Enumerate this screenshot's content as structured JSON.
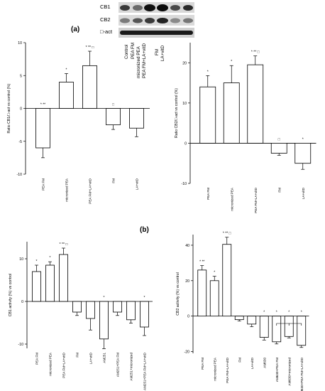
{
  "figure": {
    "panel_a": "(a)",
    "panel_b": "(b)",
    "blot": {
      "labels": [
        "CB1",
        "CB2",
        "□-act"
      ],
      "columns": [
        "Control",
        "PEA FM",
        "micronized PEA",
        "PEA FM+LA+vitD",
        "FM",
        "LA+vitD"
      ]
    }
  },
  "chart_data": [
    {
      "id": "cb1_expr",
      "type": "bar",
      "ylabel": "Ratio CB1/□-act vs control (%)",
      "ylim": [
        -10,
        10
      ],
      "yticks": [
        -10,
        -5,
        0,
        5,
        10
      ],
      "categories": [
        "PEA FM",
        "micronized PEA",
        "PEA FM+LA+vitD",
        "FM",
        "LA+vitD"
      ],
      "values": [
        -6.0,
        4.0,
        6.5,
        -2.5,
        -3.0
      ],
      "errors": [
        1.5,
        1.3,
        2.2,
        0.7,
        1.3
      ],
      "significance": [
        "* **",
        "*",
        "* ** □",
        "□",
        ""
      ],
      "grid": false
    },
    {
      "id": "cb2_expr",
      "type": "bar",
      "ylabel": "Ratio CB2/□-act vs control (%)",
      "ylim": [
        -10,
        25
      ],
      "yticks": [
        -10,
        0,
        10,
        20
      ],
      "categories": [
        "PEA FM",
        "micronized PEA",
        "PEA FM+LA+vitD",
        "FM",
        "LA+vitD"
      ],
      "values": [
        14,
        15,
        19.5,
        -2.5,
        -5
      ],
      "errors": [
        2.8,
        4.3,
        2.2,
        0.5,
        1.5
      ],
      "significance": [
        "*",
        "*",
        "* ** □",
        "□",
        "*"
      ],
      "grid": false
    },
    {
      "id": "cb1_activity",
      "type": "bar",
      "ylabel": "CB1 activity (%) vs control",
      "ylim": [
        -11,
        14
      ],
      "yticks": [
        -10,
        0,
        10
      ],
      "categories": [
        "PEA FM",
        "micronized PEA",
        "PEA FM+LA+vitD",
        "FM",
        "LA+vitD",
        "AM251",
        "AM251+PEA FM",
        "AM251+micronized",
        "AM251+PEA FM+LA+vitD"
      ],
      "values": [
        7,
        8.5,
        11,
        -2.5,
        -4,
        -8.8,
        -2.5,
        -4.3,
        -6
      ],
      "errors": [
        1.5,
        0.8,
        1.5,
        0.8,
        2.7,
        2.3,
        0.8,
        0.8,
        2.0
      ],
      "significance": [
        "*",
        "*",
        "* ** □",
        "",
        "",
        "*",
        "",
        "",
        "*"
      ],
      "grid": false
    },
    {
      "id": "cb2_activity",
      "type": "bar",
      "ylabel": "CB2 activity (%) vs control",
      "ylim": [
        -21,
        46
      ],
      "yticks": [
        -20,
        0,
        20,
        40
      ],
      "categories": [
        "PEA FM",
        "micronized PEA",
        "PEA FM+LA+vitD",
        "FM",
        "LA+vitD",
        "AM630",
        "AM630+PEA FM",
        "AM630+micronized",
        "AM630+PEA FM+LA+vitD"
      ],
      "values": [
        26,
        20,
        40.5,
        -2,
        -4.5,
        -12,
        -14.5,
        -11.5,
        -16.5
      ],
      "errors": [
        2.5,
        2.5,
        4.0,
        0.8,
        1.5,
        1.5,
        1.2,
        0.8,
        1.2
      ],
      "significance": [
        "* **",
        "*",
        "* ** □",
        "",
        "",
        "*",
        "*",
        "*",
        "*"
      ],
      "grid": false
    }
  ]
}
